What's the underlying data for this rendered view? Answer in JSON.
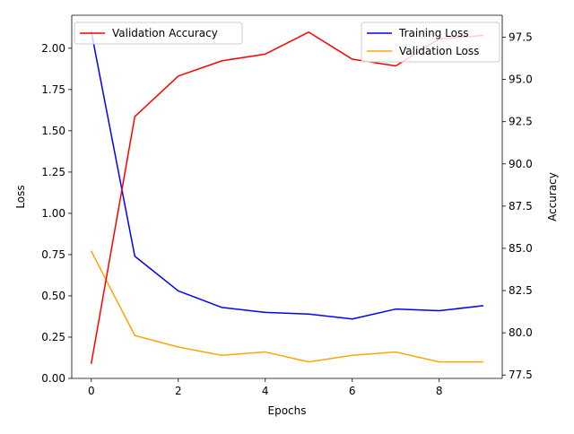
{
  "chart_data": {
    "type": "line",
    "title": "",
    "x": [
      0,
      1,
      2,
      3,
      4,
      5,
      6,
      7,
      8,
      9
    ],
    "xlabel": "Epochs",
    "xlim": [
      -0.45,
      9.45
    ],
    "xticks": [
      0,
      2,
      4,
      6,
      8
    ],
    "left_axis": {
      "label": "Loss",
      "ylim": [
        0.0,
        2.2
      ],
      "ticks": [
        0.0,
        0.25,
        0.5,
        0.75,
        1.0,
        1.25,
        1.5,
        1.75,
        2.0
      ],
      "tick_labels": [
        "0.00",
        "0.25",
        "0.50",
        "0.75",
        "1.00",
        "1.25",
        "1.50",
        "1.75",
        "2.00"
      ]
    },
    "right_axis": {
      "label": "Accuracy",
      "ylim": [
        77.3,
        98.8
      ],
      "ticks": [
        77.5,
        80.0,
        82.5,
        85.0,
        87.5,
        90.0,
        92.5,
        95.0,
        97.5
      ],
      "tick_labels": [
        "77.5",
        "80.0",
        "82.5",
        "85.0",
        "87.5",
        "90.0",
        "92.5",
        "95.0",
        "97.5"
      ]
    },
    "series": [
      {
        "name": "Training Loss",
        "axis": "left",
        "color": "#0000ff",
        "values": [
          2.1,
          0.74,
          0.53,
          0.43,
          0.4,
          0.39,
          0.36,
          0.42,
          0.41,
          0.44
        ]
      },
      {
        "name": "Validation Loss",
        "axis": "left",
        "color": "#ffa500",
        "values": [
          0.77,
          0.26,
          0.19,
          0.14,
          0.16,
          0.1,
          0.14,
          0.16,
          0.1,
          0.1
        ]
      },
      {
        "name": "Validation Accuracy",
        "axis": "right",
        "color": "#ff0000",
        "values": [
          78.2,
          92.8,
          95.2,
          96.1,
          96.5,
          97.8,
          96.2,
          95.8,
          97.4,
          97.6
        ]
      }
    ],
    "legends": [
      {
        "position": "upper-left",
        "entries": [
          "Validation Accuracy"
        ]
      },
      {
        "position": "upper-right",
        "entries": [
          "Training Loss",
          "Validation Loss"
        ]
      }
    ],
    "grid": false
  }
}
